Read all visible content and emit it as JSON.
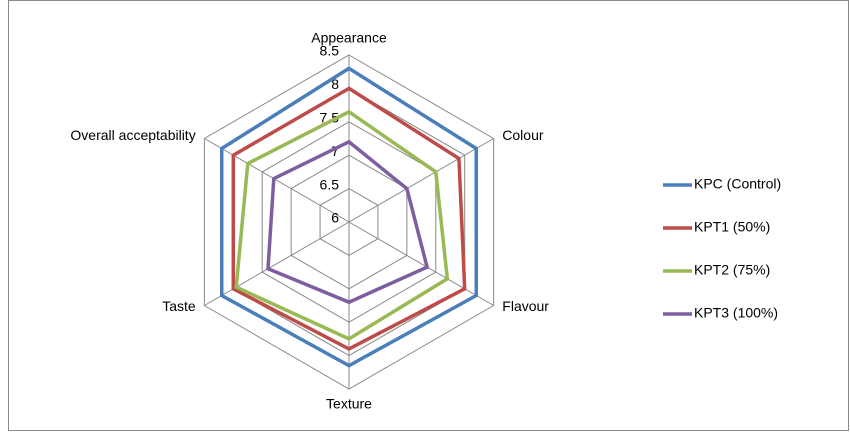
{
  "chart_data": {
    "type": "radar",
    "categories": [
      "Appearance",
      "Colour",
      "Flavour",
      "Texture",
      "Taste",
      "Overall acceptability"
    ],
    "series": [
      {
        "name": "KPC (Control)",
        "color": "#4a7ebb",
        "values": [
          8.3,
          8.2,
          8.2,
          8.15,
          8.2,
          8.2
        ]
      },
      {
        "name": "KPT1 (50%)",
        "color": "#be4b48",
        "values": [
          8.0,
          7.9,
          8.0,
          7.9,
          8.0,
          8.0
        ]
      },
      {
        "name": "KPT2 (75%)",
        "color": "#98b954",
        "values": [
          7.65,
          7.5,
          7.7,
          7.75,
          7.95,
          7.75
        ]
      },
      {
        "name": "KPT3 (100%)",
        "color": "#7d5fa0",
        "values": [
          7.2,
          7.0,
          7.35,
          7.2,
          7.4,
          7.3
        ]
      }
    ],
    "ylim": [
      6,
      8.5
    ],
    "yticks": [
      6,
      6.5,
      7,
      7.5,
      8,
      8.5
    ],
    "grid": true,
    "legend": "right"
  }
}
